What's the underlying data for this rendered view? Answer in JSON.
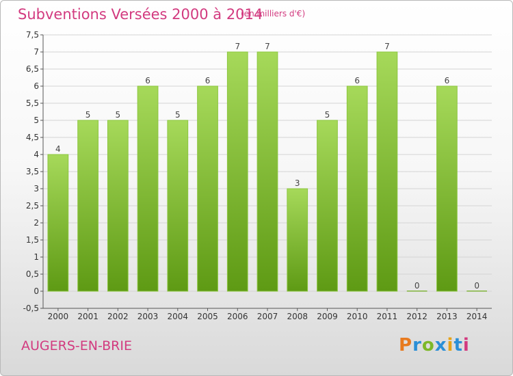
{
  "header": {
    "title": "Subventions Versées 2000 à 2014",
    "unit": "(en milliers d'€)"
  },
  "footer": {
    "commune": "AUGERS-EN-BRIE",
    "logo": "Proxiti"
  },
  "colors": {
    "title": "#d23a7f",
    "bar_light": "#a6d95a",
    "bar_dark": "#5e9a14",
    "logo": [
      "#e87a1e",
      "#2b8fd6",
      "#7db828",
      "#2b8fd6",
      "#e6a317",
      "#2b8fd6",
      "#d23a7f"
    ]
  },
  "chart_data": {
    "type": "bar",
    "categories": [
      "2000",
      "2001",
      "2002",
      "2003",
      "2004",
      "2005",
      "2006",
      "2007",
      "2008",
      "2009",
      "2010",
      "2011",
      "2012",
      "2013",
      "2014"
    ],
    "values": [
      4,
      5,
      5,
      6,
      5,
      6,
      7,
      7,
      3,
      5,
      6,
      7,
      0,
      6,
      0
    ],
    "value_labels": [
      "4",
      "5",
      "5",
      "6",
      "5",
      "6",
      "7",
      "7",
      "3",
      "5",
      "6",
      "7",
      "0",
      "6",
      "0"
    ],
    "y_ticks": [
      "-0,5",
      "0",
      "0,5",
      "1",
      "1,5",
      "2",
      "2,5",
      "3",
      "3,5",
      "4",
      "4,5",
      "5",
      "5,5",
      "6",
      "6,5",
      "7",
      "7,5"
    ],
    "ylim": [
      -0.5,
      7.5
    ],
    "grid": true,
    "title": "Subventions Versées 2000 à 2014",
    "xlabel": "",
    "ylabel": ""
  }
}
